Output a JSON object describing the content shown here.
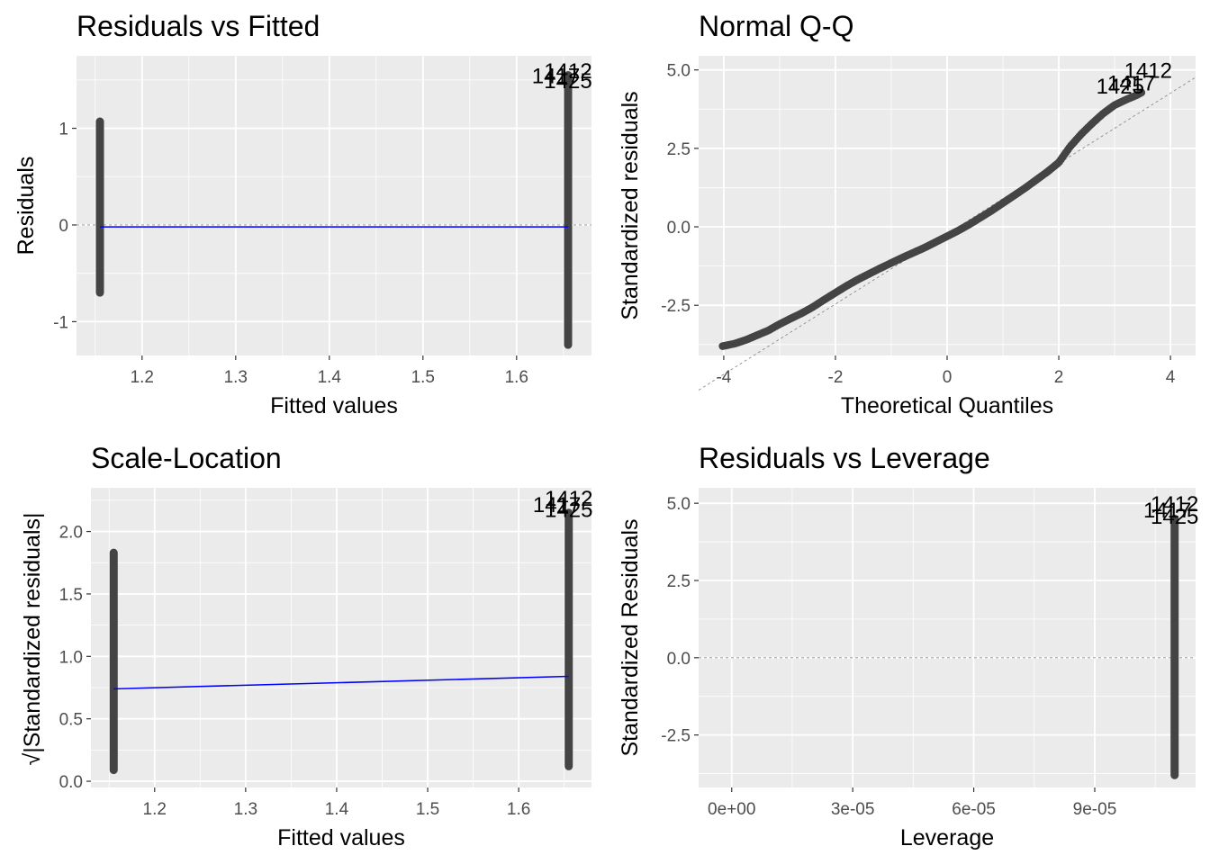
{
  "colors": {
    "panel_background": "#ebebeb",
    "grid": "#ffffff",
    "points": "#444444",
    "smooth_line": "#0000ff",
    "reference_line": "#8c8c8c"
  },
  "chart_data": [
    {
      "id": "residuals-vs-fitted",
      "type": "scatter",
      "title": "Residuals vs Fitted",
      "xlabel": "Fitted values",
      "ylabel": "Residuals",
      "xlim": [
        1.13,
        1.68
      ],
      "ylim": [
        -1.35,
        1.75
      ],
      "xticks": [
        1.2,
        1.3,
        1.4,
        1.5,
        1.6
      ],
      "xtick_labels": [
        "1.2",
        "1.3",
        "1.4",
        "1.5",
        "1.6"
      ],
      "yticks": [
        -1,
        0,
        1
      ],
      "ytick_labels": [
        "-1",
        "0",
        "1"
      ],
      "grid": true,
      "point_groups": [
        {
          "x": 1.155,
          "y_min": -0.7,
          "y_max": 1.07
        },
        {
          "x": 1.655,
          "y_min": -1.24,
          "y_max": 1.55
        }
      ],
      "smooth_line": {
        "x": [
          1.155,
          1.655
        ],
        "y": [
          -0.02,
          -0.02
        ]
      },
      "reference_line": {
        "type": "h",
        "y": 0
      },
      "point_labels": [
        {
          "text": "1412",
          "x": 1.655,
          "y": 1.6
        },
        {
          "text": "1425",
          "x": 1.655,
          "y": 1.5
        },
        {
          "text": "1417",
          "x": 1.642,
          "y": 1.55
        }
      ]
    },
    {
      "id": "normal-qq",
      "type": "scatter",
      "title": "Normal Q-Q",
      "xlabel": "Theoretical Quantiles",
      "ylabel": "Standardized residuals",
      "xlim": [
        -4.45,
        4.45
      ],
      "ylim": [
        -4.1,
        5.45
      ],
      "xticks": [
        -4,
        -2,
        0,
        2,
        4
      ],
      "xtick_labels": [
        "-4",
        "-2",
        "0",
        "2",
        "4"
      ],
      "yticks": [
        -2.5,
        0,
        2.5,
        5
      ],
      "ytick_labels": [
        "-2.5",
        "0.0",
        "2.5",
        "5.0"
      ],
      "grid": true,
      "qq_curve": {
        "x": [
          -4.02,
          -3.8,
          -3.6,
          -3.4,
          -3.2,
          -3.0,
          -2.8,
          -2.6,
          -2.4,
          -2.2,
          -2.0,
          -1.8,
          -1.6,
          -1.4,
          -1.2,
          -1.0,
          -0.8,
          -0.6,
          -0.4,
          -0.2,
          0.0,
          0.2,
          0.4,
          0.6,
          0.8,
          1.0,
          1.2,
          1.4,
          1.6,
          1.8,
          2.0,
          2.2,
          2.4,
          2.6,
          2.8,
          3.0,
          3.2,
          3.4,
          3.5
        ],
        "y": [
          -3.8,
          -3.72,
          -3.6,
          -3.45,
          -3.3,
          -3.1,
          -2.92,
          -2.75,
          -2.55,
          -2.32,
          -2.1,
          -1.88,
          -1.68,
          -1.5,
          -1.32,
          -1.15,
          -0.98,
          -0.82,
          -0.66,
          -0.48,
          -0.3,
          -0.12,
          0.08,
          0.3,
          0.52,
          0.76,
          1.0,
          1.24,
          1.5,
          1.76,
          2.05,
          2.55,
          2.95,
          3.3,
          3.62,
          3.88,
          4.05,
          4.2,
          4.3
        ]
      },
      "reference_line": {
        "type": "abline",
        "intercept": -0.22,
        "slope": 1.12
      },
      "point_labels": [
        {
          "text": "1412",
          "x": 3.6,
          "y": 5.0
        },
        {
          "text": "1417",
          "x": 3.3,
          "y": 4.6
        },
        {
          "text": "1425",
          "x": 3.1,
          "y": 4.5
        }
      ]
    },
    {
      "id": "scale-location",
      "type": "scatter",
      "title": "Scale-Location",
      "xlabel": "Fitted values",
      "ylabel": "√|Standardized residuals|",
      "xlim": [
        1.13,
        1.68
      ],
      "ylim": [
        -0.05,
        2.35
      ],
      "xticks": [
        1.2,
        1.3,
        1.4,
        1.5,
        1.6
      ],
      "xtick_labels": [
        "1.2",
        "1.3",
        "1.4",
        "1.5",
        "1.6"
      ],
      "yticks": [
        0,
        0.5,
        1,
        1.5,
        2
      ],
      "ytick_labels": [
        "0.0",
        "0.5",
        "1.0",
        "1.5",
        "2.0"
      ],
      "grid": true,
      "point_groups": [
        {
          "x": 1.155,
          "y_min": 0.09,
          "y_max": 1.83
        },
        {
          "x": 1.655,
          "y_min": 0.12,
          "y_max": 2.15
        }
      ],
      "smooth_line": {
        "x": [
          1.155,
          1.655
        ],
        "y": [
          0.74,
          0.84
        ]
      },
      "point_labels": [
        {
          "text": "1412",
          "x": 1.655,
          "y": 2.27
        },
        {
          "text": "1425",
          "x": 1.655,
          "y": 2.18
        },
        {
          "text": "1417",
          "x": 1.642,
          "y": 2.22
        }
      ]
    },
    {
      "id": "residuals-vs-leverage",
      "type": "scatter",
      "title": "Residuals vs Leverage",
      "xlabel": "Leverage",
      "ylabel": "Standardized Residuals",
      "xlim": [
        -8.2e-06,
        0.000115
      ],
      "ylim": [
        -4.2,
        5.5
      ],
      "xticks": [
        0,
        3e-05,
        6e-05,
        9e-05
      ],
      "xtick_labels": [
        "0e+00",
        "3e-05",
        "6e-05",
        "9e-05"
      ],
      "yticks": [
        -2.5,
        0,
        2.5,
        5
      ],
      "ytick_labels": [
        "-2.5",
        "0.0",
        "2.5",
        "5.0"
      ],
      "grid": true,
      "point_groups": [
        {
          "x": 0.0001098,
          "y_min": -3.8,
          "y_max": 4.5
        }
      ],
      "reference_line": {
        "type": "h",
        "y": 0
      },
      "point_labels": [
        {
          "text": "1412",
          "x": 0.0001098,
          "y": 5.0
        },
        {
          "text": "1425",
          "x": 0.0001098,
          "y": 4.6
        },
        {
          "text": "1417",
          "x": 0.000108,
          "y": 4.8
        }
      ]
    }
  ]
}
